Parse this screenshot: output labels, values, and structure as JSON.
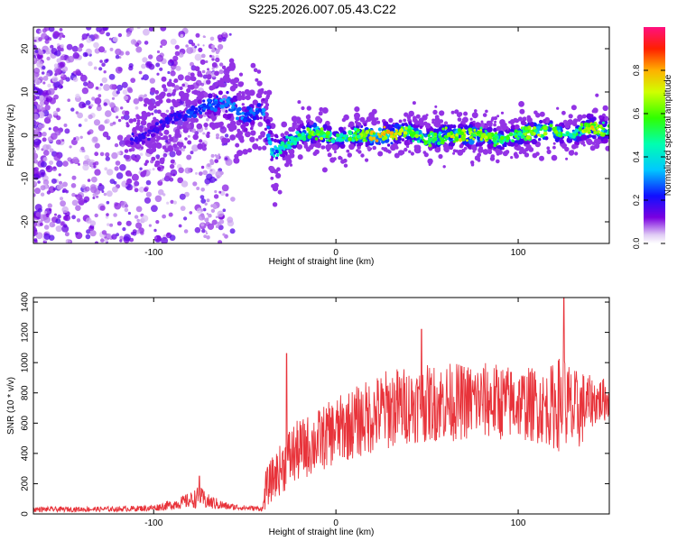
{
  "title": "S225.2026.007.05.43.C22",
  "chart_data": [
    {
      "type": "heatmap",
      "xlabel": "Height of straight line (km)",
      "ylabel": "Frequency (Hz)",
      "xlim": [
        -166,
        150
      ],
      "ylim": [
        -25,
        25
      ],
      "xticks": [
        -100,
        0,
        100
      ],
      "yticks": [
        -20,
        -10,
        0,
        10,
        20
      ],
      "colorbar": {
        "label": "Normalized spectral amplitude",
        "range": [
          0,
          1
        ],
        "ticks": [
          0,
          0.2,
          0.4,
          0.6,
          0.8
        ],
        "tick_labels": [
          "0.0",
          "0.2",
          "0.4",
          "0.6",
          "0.8"
        ]
      },
      "ridge": {
        "x": [
          -110,
          -100,
          -90,
          -80,
          -70,
          -60,
          -50,
          -40,
          -35,
          -30,
          -20,
          -10,
          0,
          10,
          20,
          30,
          40,
          50,
          60,
          70,
          80,
          90,
          100,
          110,
          120,
          130,
          140,
          150
        ],
        "freq": [
          -1,
          1,
          4,
          5,
          7,
          8,
          4,
          6,
          -4,
          -3,
          0,
          1,
          -1,
          0,
          0,
          0,
          1,
          -1,
          0,
          0,
          0,
          -1,
          0,
          1,
          1,
          0,
          2,
          1
        ],
        "amplitude": [
          0.2,
          0.2,
          0.2,
          0.25,
          0.3,
          0.35,
          0.3,
          0.3,
          0.4,
          0.5,
          0.55,
          0.7,
          0.5,
          0.6,
          0.8,
          0.8,
          0.65,
          0.6,
          0.7,
          0.75,
          0.7,
          0.6,
          0.6,
          0.7,
          0.65,
          0.5,
          0.8,
          0.6
        ]
      }
    },
    {
      "type": "line",
      "xlabel": "Height of straight line (km)",
      "ylabel": "SNR (10 * v/v)",
      "xlim": [
        -166,
        150
      ],
      "ylim": [
        0,
        1430
      ],
      "xticks": [
        -100,
        0,
        100
      ],
      "yticks": [
        0,
        200,
        400,
        600,
        800,
        1000,
        1200,
        1400
      ],
      "color": "#e8333a",
      "envelope": {
        "x": [
          -166,
          -120,
          -100,
          -90,
          -80,
          -75,
          -70,
          -60,
          -50,
          -40,
          -39,
          -35,
          -30,
          -25,
          -20,
          -10,
          0,
          10,
          20,
          30,
          40,
          50,
          60,
          70,
          80,
          90,
          100,
          110,
          115,
          120,
          125,
          130,
          135,
          140,
          150
        ],
        "mean": [
          30,
          32,
          40,
          60,
          90,
          110,
          80,
          50,
          40,
          35,
          150,
          230,
          300,
          380,
          420,
          480,
          550,
          600,
          650,
          700,
          720,
          730,
          740,
          740,
          750,
          740,
          730,
          720,
          700,
          720,
          740,
          660,
          700,
          740,
          760
        ],
        "spread": [
          20,
          20,
          25,
          40,
          60,
          90,
          60,
          30,
          20,
          20,
          150,
          170,
          200,
          250,
          240,
          250,
          260,
          280,
          300,
          320,
          300,
          300,
          310,
          300,
          300,
          300,
          280,
          300,
          280,
          350,
          400,
          350,
          300,
          200,
          160
        ],
        "peaks": [
          [
            -75,
            250
          ],
          [
            -27,
            1060
          ],
          [
            47,
            1220
          ],
          [
            125,
            1430
          ]
        ]
      }
    }
  ]
}
